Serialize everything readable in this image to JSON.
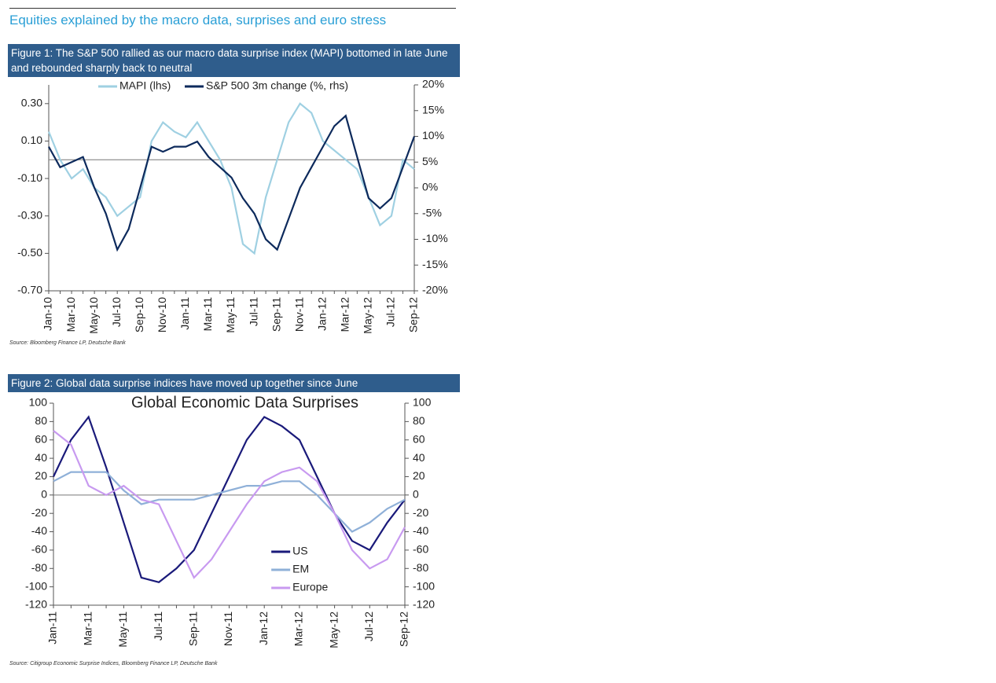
{
  "header": {
    "title": "Equities explained by the macro data, surprises and euro stress"
  },
  "chart_data": [
    {
      "type": "line",
      "caption": "Figure 1: The S&P 500 rallied as our macro data surprise index (MAPI) bottomed in late June and rebounded sharply back to neutral",
      "source": "Source: Bloomberg Finance LP, Deutsche Bank",
      "categories": [
        "Jan-10",
        null,
        "Mar-10",
        null,
        "May-10",
        null,
        "Jul-10",
        null,
        "Sep-10",
        null,
        "Nov-10",
        null,
        "Jan-11",
        null,
        "Mar-11",
        null,
        "May-11",
        null,
        "Jul-11",
        null,
        "Sep-11",
        null,
        "Nov-11",
        null,
        "Jan-12",
        null,
        "Mar-12",
        null,
        "May-12",
        null,
        "Jul-12",
        null,
        "Sep-12"
      ],
      "series": [
        {
          "name": "MAPI (lhs)",
          "color": "#9fd0e2",
          "values": [
            0.15,
            0.0,
            -0.1,
            -0.05,
            -0.15,
            -0.2,
            -0.3,
            -0.25,
            -0.2,
            0.1,
            0.2,
            0.15,
            0.12,
            0.2,
            0.1,
            0.0,
            -0.15,
            -0.45,
            -0.5,
            -0.2,
            0.0,
            0.2,
            0.3,
            0.25,
            0.1,
            0.05,
            0.0,
            -0.05,
            -0.2,
            -0.35,
            -0.3,
            0.0,
            -0.05
          ]
        },
        {
          "name": "S&P 500 3m change (%, rhs)",
          "color": "#0d2a5c",
          "axis": "y2",
          "values": [
            8,
            4,
            5,
            6,
            0,
            -5,
            -12,
            -8,
            0,
            8,
            7,
            8,
            8,
            9,
            6,
            4,
            2,
            -2,
            -5,
            -10,
            -12,
            -6,
            0,
            4,
            8,
            12,
            14,
            6,
            -2,
            -4,
            -2,
            4,
            10
          ]
        }
      ],
      "ylim": [
        -0.7,
        0.4
      ],
      "yticks": [
        {
          "value": -0.7,
          "label": "-0.70"
        },
        {
          "value": -0.5,
          "label": "-0.50"
        },
        {
          "value": -0.3,
          "label": "-0.30"
        },
        {
          "value": -0.1,
          "label": "-0.10"
        },
        {
          "value": 0.1,
          "label": "0.10"
        },
        {
          "value": 0.3,
          "label": "0.30"
        }
      ],
      "y2lim": [
        -20,
        20
      ],
      "y2ticks": [
        {
          "value": -20,
          "label": "-20%"
        },
        {
          "value": -15,
          "label": "-15%"
        },
        {
          "value": -10,
          "label": "-10%"
        },
        {
          "value": -5,
          "label": "-5%"
        },
        {
          "value": 0,
          "label": "0%"
        },
        {
          "value": 5,
          "label": "5%"
        },
        {
          "value": 10,
          "label": "10%"
        },
        {
          "value": 15,
          "label": "15%"
        },
        {
          "value": 20,
          "label": "20%"
        }
      ],
      "legend": "upper center"
    },
    {
      "type": "line",
      "caption": "Figure 2: Global data surprise indices have moved up together since June",
      "title": "Global Economic Data Surprises",
      "source": "Source: Citigroup Economic Surprise Indices, Bloomberg Finance LP, Deutsche Bank",
      "categories": [
        "Jan-11",
        null,
        "Mar-11",
        null,
        "May-11",
        null,
        "Jul-11",
        null,
        "Sep-11",
        null,
        "Nov-11",
        null,
        "Jan-12",
        null,
        "Mar-12",
        null,
        "May-12",
        null,
        "Jul-12",
        null,
        "Sep-12"
      ],
      "series": [
        {
          "name": "US",
          "color": "#1a1a7a",
          "values": [
            20,
            60,
            85,
            30,
            -30,
            -90,
            -95,
            -80,
            -60,
            -20,
            20,
            60,
            85,
            75,
            60,
            20,
            -20,
            -50,
            -60,
            -30,
            -5
          ]
        },
        {
          "name": "EM",
          "color": "#8fb0d8",
          "values": [
            15,
            25,
            25,
            25,
            5,
            -10,
            -5,
            -5,
            -5,
            0,
            5,
            10,
            10,
            15,
            15,
            0,
            -20,
            -40,
            -30,
            -15,
            -5
          ]
        },
        {
          "name": "Europe",
          "color": "#c89af0",
          "values": [
            70,
            55,
            10,
            0,
            10,
            -5,
            -10,
            -50,
            -90,
            -70,
            -40,
            -10,
            15,
            25,
            30,
            15,
            -20,
            -60,
            -80,
            -70,
            -35
          ]
        }
      ],
      "ylim": [
        -120,
        100
      ],
      "yticks": [
        -120,
        -100,
        -80,
        -60,
        -40,
        -20,
        0,
        20,
        40,
        60,
        80,
        100
      ],
      "y2lim": [
        -120,
        100
      ],
      "y2ticks": [
        -120,
        -100,
        -80,
        -60,
        -40,
        -20,
        0,
        20,
        40,
        60,
        80,
        100
      ],
      "legend": "lower center"
    }
  ]
}
